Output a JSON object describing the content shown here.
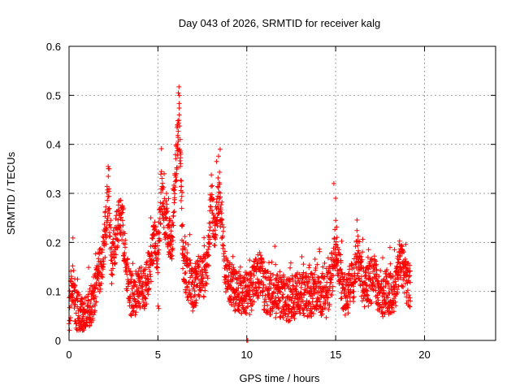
{
  "chart_data": {
    "type": "scatter",
    "title": "Day 043 of 2026, SRMTID for receiver kalg",
    "xlabel": "GPS time / hours",
    "ylabel": "SRMTID / TECUs",
    "xlim": [
      0,
      24
    ],
    "ylim": [
      0,
      0.6
    ],
    "xticks": [
      0,
      5,
      10,
      15,
      20
    ],
    "yticks": [
      0,
      0.1,
      0.2,
      0.3,
      0.4,
      0.5,
      0.6
    ],
    "yticklabels": [
      "0",
      "0.1",
      "0.2",
      "0.3",
      "0.4",
      "0.5",
      "0.6"
    ],
    "grid": true,
    "marker": "+",
    "series": [
      {
        "name": "SRMTID",
        "color": "#ff0000",
        "envelope": [
          [
            0.0,
            0.05
          ],
          [
            0.2,
            0.12
          ],
          [
            0.4,
            0.06
          ],
          [
            0.6,
            0.05
          ],
          [
            0.8,
            0.04
          ],
          [
            1.0,
            0.06
          ],
          [
            1.2,
            0.07
          ],
          [
            1.4,
            0.09
          ],
          [
            1.6,
            0.13
          ],
          [
            1.8,
            0.15
          ],
          [
            2.0,
            0.2
          ],
          [
            2.2,
            0.3
          ],
          [
            2.4,
            0.16
          ],
          [
            2.6,
            0.2
          ],
          [
            2.8,
            0.25
          ],
          [
            3.0,
            0.24
          ],
          [
            3.2,
            0.15
          ],
          [
            3.4,
            0.1
          ],
          [
            3.6,
            0.09
          ],
          [
            3.8,
            0.1
          ],
          [
            4.0,
            0.11
          ],
          [
            4.2,
            0.1
          ],
          [
            4.4,
            0.12
          ],
          [
            4.6,
            0.16
          ],
          [
            4.8,
            0.2
          ],
          [
            5.0,
            0.18
          ],
          [
            5.2,
            0.3
          ],
          [
            5.4,
            0.25
          ],
          [
            5.6,
            0.22
          ],
          [
            5.8,
            0.2
          ],
          [
            6.0,
            0.35
          ],
          [
            6.2,
            0.45
          ],
          [
            6.4,
            0.17
          ],
          [
            6.6,
            0.13
          ],
          [
            6.8,
            0.12
          ],
          [
            7.0,
            0.1
          ],
          [
            7.2,
            0.12
          ],
          [
            7.4,
            0.14
          ],
          [
            7.6,
            0.13
          ],
          [
            7.8,
            0.15
          ],
          [
            8.0,
            0.3
          ],
          [
            8.2,
            0.22
          ],
          [
            8.4,
            0.3
          ],
          [
            8.6,
            0.25
          ],
          [
            8.8,
            0.14
          ],
          [
            9.0,
            0.12
          ],
          [
            9.2,
            0.11
          ],
          [
            9.4,
            0.1
          ],
          [
            9.6,
            0.1
          ],
          [
            9.8,
            0.09
          ],
          [
            10.0,
            0.1
          ],
          [
            10.2,
            0.09
          ],
          [
            10.4,
            0.12
          ],
          [
            10.6,
            0.13
          ],
          [
            10.8,
            0.14
          ],
          [
            11.0,
            0.1
          ],
          [
            11.5,
            0.09
          ],
          [
            12.0,
            0.09
          ],
          [
            12.5,
            0.08
          ],
          [
            13.0,
            0.1
          ],
          [
            13.5,
            0.09
          ],
          [
            14.0,
            0.1
          ],
          [
            14.5,
            0.09
          ],
          [
            14.8,
            0.14
          ],
          [
            15.0,
            0.2
          ],
          [
            15.2,
            0.16
          ],
          [
            15.4,
            0.1
          ],
          [
            15.6,
            0.09
          ],
          [
            15.8,
            0.11
          ],
          [
            16.0,
            0.12
          ],
          [
            16.2,
            0.18
          ],
          [
            16.4,
            0.15
          ],
          [
            16.6,
            0.1
          ],
          [
            16.8,
            0.11
          ],
          [
            17.0,
            0.12
          ],
          [
            17.2,
            0.13
          ],
          [
            17.4,
            0.1
          ],
          [
            17.6,
            0.09
          ],
          [
            17.8,
            0.1
          ],
          [
            18.0,
            0.09
          ],
          [
            18.2,
            0.1
          ],
          [
            18.4,
            0.11
          ],
          [
            18.6,
            0.16
          ],
          [
            18.8,
            0.15
          ],
          [
            19.0,
            0.12
          ],
          [
            19.2,
            0.11
          ]
        ],
        "outliers": [
          [
            2.2,
            0.355
          ],
          [
            2.25,
            0.35
          ],
          [
            6.15,
            0.505
          ],
          [
            6.2,
            0.5
          ],
          [
            6.1,
            0.44
          ],
          [
            6.25,
            0.41
          ],
          [
            8.5,
            0.39
          ],
          [
            8.3,
            0.365
          ],
          [
            14.9,
            0.32
          ],
          [
            10.0,
            0.0
          ],
          [
            10.05,
            0.0
          ],
          [
            5.0,
            0.07
          ],
          [
            5.05,
            0.065
          ],
          [
            15.0,
            0.29
          ],
          [
            5.35,
            0.34
          ],
          [
            4.6,
            0.25
          ]
        ]
      }
    ]
  }
}
